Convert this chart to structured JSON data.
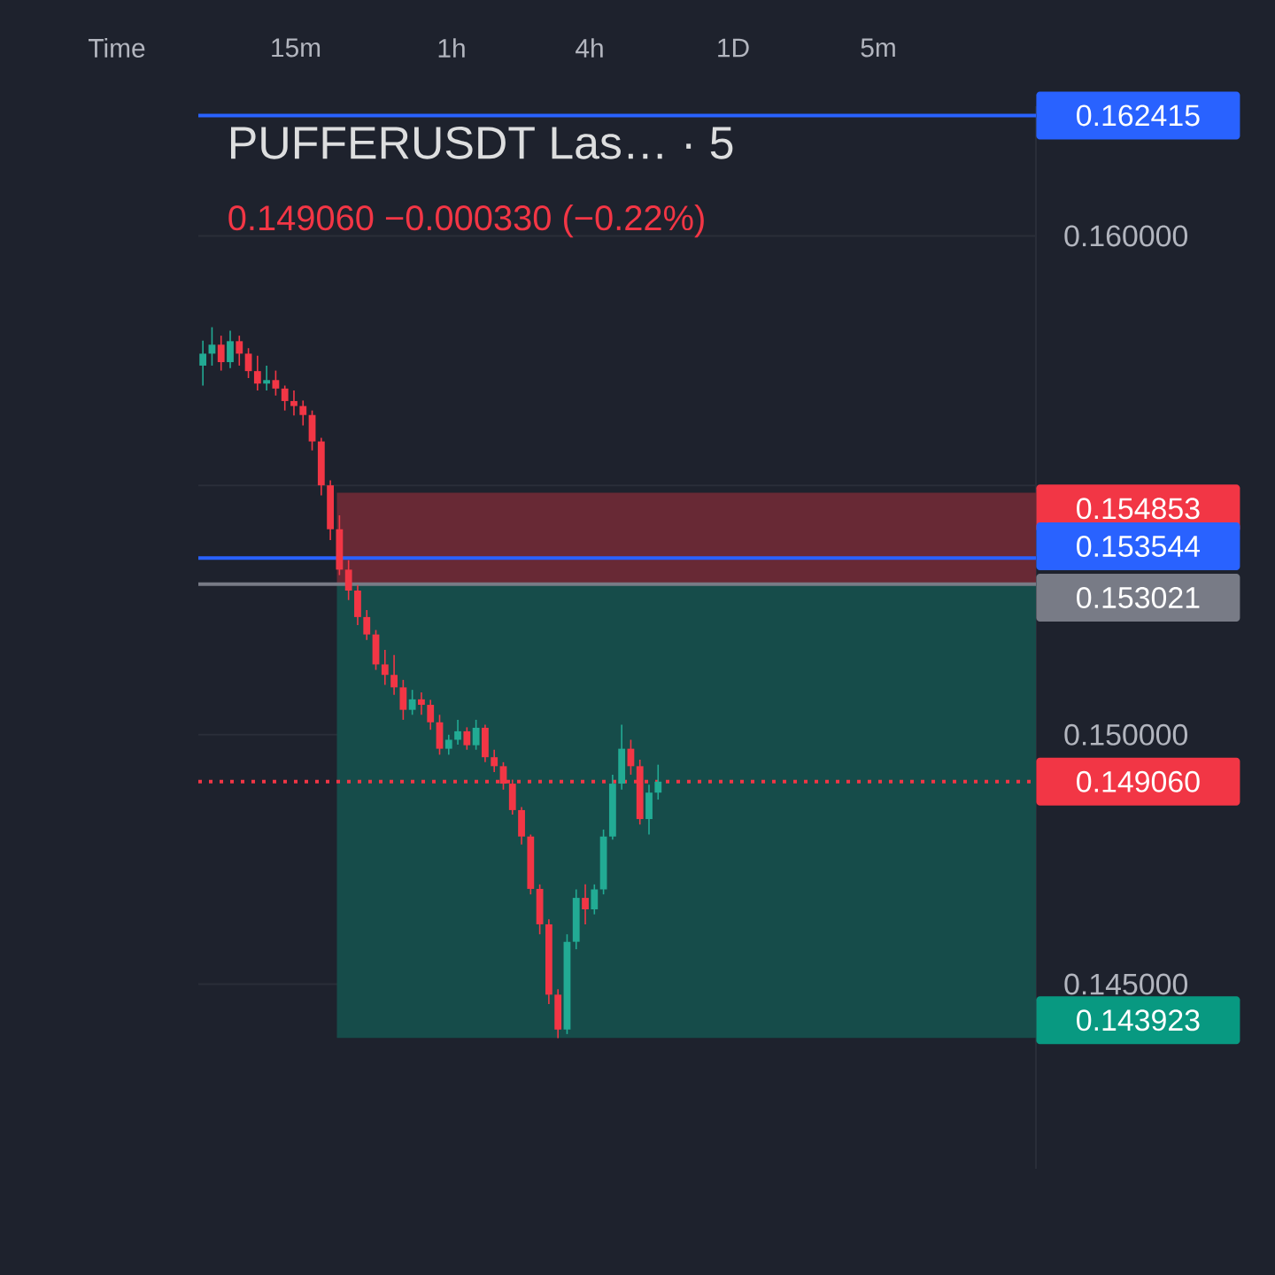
{
  "chart_data": {
    "type": "candlestick",
    "title": "PUFFERUSDT Las… · 5",
    "subtitle": "0.149060  −0.000330 (−0.22%)",
    "categories": [
      null,
      null,
      null,
      null,
      null,
      null,
      null,
      null,
      null,
      null,
      null,
      null,
      null,
      null,
      null,
      null,
      null,
      null,
      null,
      null,
      null,
      null,
      null,
      null,
      null,
      null,
      null,
      null,
      null,
      null,
      null,
      null,
      null,
      null,
      null,
      null,
      null,
      null,
      null,
      null,
      null,
      null,
      null,
      null,
      null,
      null,
      null,
      null,
      null,
      null,
      null,
      null,
      null,
      null,
      null,
      null,
      null,
      null,
      null,
      null,
      null,
      null,
      null,
      null,
      null,
      null,
      null,
      null,
      null,
      null,
      null,
      null,
      null,
      null,
      null,
      null,
      null,
      null,
      null,
      null,
      null,
      null,
      null,
      null,
      null,
      null,
      null,
      null,
      null,
      null,
      null,
      null
    ],
    "ohlc": [
      [
        0.1574,
        0.1579,
        0.157,
        0.15764
      ],
      [
        0.15764,
        0.15817,
        0.1574,
        0.15782
      ],
      [
        0.15782,
        0.158,
        0.1573,
        0.15747
      ],
      [
        0.15747,
        0.1581,
        0.15735,
        0.15789
      ],
      [
        0.15789,
        0.158,
        0.1574,
        0.15764
      ],
      [
        0.15764,
        0.15775,
        0.15715,
        0.15729
      ],
      [
        0.15729,
        0.1576,
        0.1569,
        0.15704
      ],
      [
        0.15704,
        0.1574,
        0.1569,
        0.15711
      ],
      [
        0.15711,
        0.1573,
        0.1568,
        0.15694
      ],
      [
        0.15694,
        0.157,
        0.1565,
        0.15669
      ],
      [
        0.15669,
        0.1569,
        0.1564,
        0.15659
      ],
      [
        0.15659,
        0.1567,
        0.1562,
        0.15641
      ],
      [
        0.15641,
        0.1565,
        0.1557,
        0.15588
      ],
      [
        0.15588,
        0.15595,
        0.1548,
        0.155
      ],
      [
        0.155,
        0.1551,
        0.1539,
        0.15412
      ],
      [
        0.15412,
        0.1544,
        0.1532,
        0.15331
      ],
      [
        0.15331,
        0.1535,
        0.1527,
        0.15289
      ],
      [
        0.15289,
        0.153,
        0.1522,
        0.15236
      ],
      [
        0.15236,
        0.1525,
        0.1519,
        0.15201
      ],
      [
        0.15201,
        0.1521,
        0.1513,
        0.15141
      ],
      [
        0.15141,
        0.1517,
        0.151,
        0.1512
      ],
      [
        0.1512,
        0.1516,
        0.1508,
        0.15095
      ],
      [
        0.15095,
        0.1511,
        0.1503,
        0.1505
      ],
      [
        0.1505,
        0.1509,
        0.1504,
        0.15071
      ],
      [
        0.15071,
        0.15085,
        0.1504,
        0.1506
      ],
      [
        0.1506,
        0.1507,
        0.1501,
        0.15025
      ],
      [
        0.15025,
        0.1504,
        0.1496,
        0.14972
      ],
      [
        0.14972,
        0.15,
        0.1496,
        0.1499
      ],
      [
        0.1499,
        0.1503,
        0.1498,
        0.15007
      ],
      [
        0.15007,
        0.15015,
        0.1497,
        0.14979
      ],
      [
        0.14979,
        0.1503,
        0.1497,
        0.15014
      ],
      [
        0.15014,
        0.1502,
        0.14945,
        0.14955
      ],
      [
        0.14955,
        0.1497,
        0.14925,
        0.14937
      ],
      [
        0.14937,
        0.14945,
        0.1489,
        0.14902
      ],
      [
        0.14902,
        0.1491,
        0.1484,
        0.14849
      ],
      [
        0.14849,
        0.14855,
        0.1478,
        0.14796
      ],
      [
        0.14796,
        0.148,
        0.1468,
        0.14691
      ],
      [
        0.14691,
        0.147,
        0.146,
        0.1462
      ],
      [
        0.1462,
        0.1463,
        0.1446,
        0.14479
      ],
      [
        0.14479,
        0.1449,
        0.14392,
        0.14409
      ],
      [
        0.14409,
        0.146,
        0.144,
        0.14585
      ],
      [
        0.14585,
        0.1469,
        0.1457,
        0.14673
      ],
      [
        0.14673,
        0.147,
        0.1462,
        0.1465
      ],
      [
        0.1465,
        0.147,
        0.1464,
        0.1469
      ],
      [
        0.1469,
        0.1481,
        0.1468,
        0.14796
      ],
      [
        0.14796,
        0.1492,
        0.1479,
        0.14902
      ],
      [
        0.14902,
        0.1502,
        0.1489,
        0.14972
      ],
      [
        0.14972,
        0.1499,
        0.1492,
        0.14937
      ],
      [
        0.14937,
        0.1495,
        0.1482,
        0.14831
      ],
      [
        0.14831,
        0.149,
        0.148,
        0.14884
      ],
      [
        0.14884,
        0.1494,
        0.1487,
        0.14906
      ],
      null,
      null,
      null,
      null,
      null,
      null,
      null,
      null,
      null,
      null,
      null,
      null,
      null,
      null,
      null,
      null,
      null,
      null,
      null,
      null,
      null,
      null,
      null,
      null,
      null,
      null,
      null,
      null,
      null,
      null,
      null,
      null,
      null,
      null,
      null,
      null,
      null,
      null,
      null,
      null,
      null
    ],
    "ylim": [
      0.1413,
      0.1626
    ],
    "yticks": [
      {
        "value": 0.145,
        "label": "0.145000"
      },
      {
        "value": 0.15,
        "label": "0.150000"
      },
      {
        "value": 0.155,
        "label": null
      },
      {
        "value": 0.16,
        "label": "0.160000"
      }
    ],
    "grid": "y",
    "ref_lines": [
      {
        "axis": "y",
        "value": 0.162415,
        "label": "0.162415",
        "color": "#2962ff",
        "line_style": "solid"
      },
      {
        "axis": "y",
        "value": 0.153544,
        "label": "0.153544",
        "color": "#2962ff",
        "line_style": "solid"
      },
      {
        "axis": "y",
        "value": 0.153021,
        "label": "0.153021",
        "color": "#787b86",
        "line_style": "solid"
      },
      {
        "axis": "y",
        "value": 0.14906,
        "label": "0.149060",
        "color": "#f23645",
        "line_style": "dotted"
      }
    ],
    "bands": [
      {
        "axis": "y",
        "from": 0.153021,
        "to": 0.154853,
        "label": "0.154853",
        "color": "#682935"
      },
      {
        "axis": "y",
        "from": 0.143923,
        "to": 0.153021,
        "label": "0.143923",
        "color": "#164c4a"
      }
    ],
    "annotations": [
      "Time",
      "15m",
      "1h",
      "4h",
      "1D",
      "5m"
    ]
  }
}
